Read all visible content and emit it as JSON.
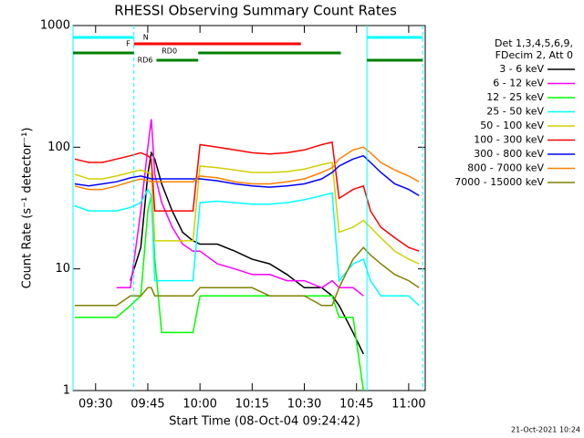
{
  "chart_data": {
    "type": "line",
    "title": "RHESSI Observing Summary Count Rates",
    "x_label": "Start Time (08-Oct-04 09:24:42)",
    "y_label": "Count Rate (s⁻¹ detector⁻¹)",
    "legend_header": [
      "Det 1,3,4,5,6,9,",
      "FDecim 2, Att 0"
    ],
    "timestamp": "21-Oct-2021 10:24",
    "ylog": true,
    "ylim": [
      1,
      1000
    ],
    "yticks": [
      1,
      10,
      100,
      1000
    ],
    "xlim": [
      "09:23:30",
      "11:04:45"
    ],
    "xticks": [
      "09:30",
      "09:45",
      "10:00",
      "10:15",
      "10:30",
      "10:45",
      "11:00"
    ],
    "x": [
      "09:24",
      "09:28",
      "09:32",
      "09:36",
      "09:40",
      "09:43",
      "09:45",
      "09:46",
      "09:47",
      "09:49",
      "09:52",
      "09:55",
      "09:58",
      "10:00",
      "10:05",
      "10:10",
      "10:15",
      "10:20",
      "10:25",
      "10:30",
      "10:35",
      "10:38",
      "10:40",
      "10:44",
      "10:47",
      "10:49",
      "10:52",
      "10:56",
      "11:00",
      "11:03"
    ],
    "series": [
      {
        "name": "3 - 6 keV",
        "color": "#000000",
        "values": [
          null,
          null,
          null,
          null,
          8,
          15,
          60,
          90,
          80,
          50,
          30,
          20,
          17,
          16,
          16,
          14,
          12,
          11,
          9,
          7,
          7,
          6,
          5,
          3,
          2,
          null,
          null,
          null,
          null,
          null
        ]
      },
      {
        "name": "6 - 12 keV",
        "color": "#ff00ff",
        "values": [
          null,
          null,
          null,
          7,
          7,
          30,
          100,
          170,
          60,
          35,
          22,
          16,
          14,
          14,
          11,
          10,
          9,
          9,
          8,
          8,
          7,
          8,
          7,
          7,
          6,
          null,
          null,
          null,
          null,
          null
        ]
      },
      {
        "name": "12 - 25 keV",
        "color": "#00ff00",
        "values": [
          4,
          4,
          4,
          4,
          5,
          6,
          30,
          40,
          12,
          3,
          3,
          3,
          3,
          6,
          6,
          6,
          6,
          6,
          6,
          6,
          6,
          6,
          4,
          4,
          1,
          null,
          null,
          null,
          null,
          null
        ]
      },
      {
        "name": "25 - 50 keV",
        "color": "#00ffff",
        "values": [
          33,
          30,
          30,
          30,
          32,
          35,
          45,
          40,
          8,
          8,
          8,
          8,
          8,
          35,
          36,
          35,
          34,
          34,
          35,
          37,
          40,
          42,
          8,
          11,
          12,
          8,
          6,
          6,
          6,
          5
        ]
      },
      {
        "name": "50 - 100 keV",
        "color": "#d0d000",
        "values": [
          60,
          55,
          55,
          58,
          62,
          65,
          62,
          60,
          17,
          17,
          17,
          17,
          17,
          70,
          68,
          65,
          62,
          62,
          63,
          66,
          72,
          75,
          20,
          22,
          25,
          22,
          18,
          14,
          12,
          11
        ]
      },
      {
        "name": "100 - 300 keV",
        "color": "#ff0000",
        "values": [
          80,
          75,
          75,
          80,
          85,
          90,
          85,
          80,
          30,
          30,
          30,
          30,
          30,
          105,
          100,
          95,
          90,
          88,
          90,
          95,
          105,
          110,
          38,
          45,
          48,
          30,
          22,
          18,
          15,
          14
        ]
      },
      {
        "name": "300 - 800 keV",
        "color": "#0000ff",
        "values": [
          50,
          48,
          50,
          52,
          56,
          58,
          56,
          55,
          55,
          55,
          55,
          55,
          55,
          55,
          53,
          50,
          48,
          47,
          48,
          50,
          55,
          62,
          70,
          80,
          85,
          75,
          62,
          50,
          45,
          40
        ]
      },
      {
        "name": "800 - 7000 keV",
        "color": "#ff8000",
        "values": [
          48,
          45,
          45,
          48,
          52,
          55,
          53,
          52,
          52,
          52,
          52,
          52,
          52,
          58,
          56,
          52,
          50,
          50,
          52,
          55,
          62,
          68,
          80,
          95,
          100,
          90,
          75,
          65,
          58,
          52
        ]
      },
      {
        "name": "7000 - 15000 keV",
        "color": "#808000",
        "values": [
          5,
          5,
          5,
          5,
          6,
          6,
          7,
          7,
          6,
          6,
          6,
          6,
          6,
          7,
          7,
          7,
          7,
          6,
          6,
          6,
          5,
          5,
          7,
          12,
          15,
          13,
          11,
          9,
          8,
          7
        ]
      }
    ],
    "flags": [
      {
        "label": "N",
        "color": "#00ffff",
        "intervals": [
          {
            "start": "09:23:30",
            "end": "09:41"
          },
          {
            "start": "10:48",
            "end": "11:04"
          }
        ]
      },
      {
        "label": "F",
        "color": "#ff0000",
        "intervals": [
          {
            "start": "09:41",
            "end": "10:29"
          }
        ]
      },
      {
        "label": "RD0",
        "color": "#008000",
        "intervals": [
          {
            "start": "09:23:30",
            "end": "09:41"
          },
          {
            "start": "09:59:30",
            "end": "10:40:30"
          }
        ]
      },
      {
        "label": "RD6",
        "color": "#008000",
        "intervals": [
          {
            "start": "09:47:30",
            "end": "09:59:30"
          },
          {
            "start": "10:48",
            "end": "11:04"
          }
        ]
      }
    ]
  }
}
